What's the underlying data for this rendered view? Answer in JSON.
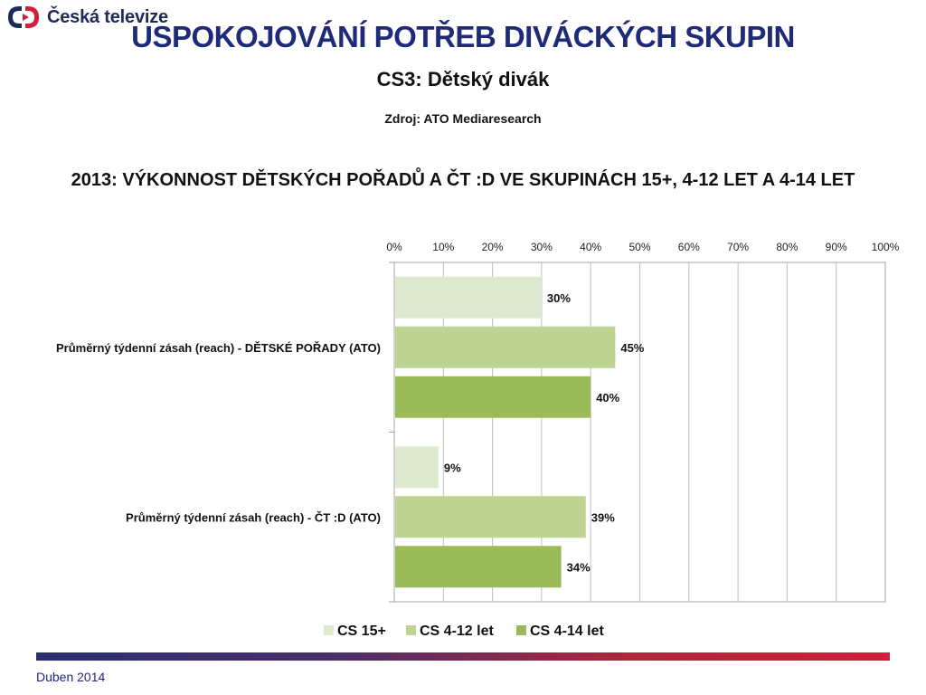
{
  "brand": {
    "name": "Česká televize",
    "mark_color": "#d0203a",
    "text_color": "#1e2a5a"
  },
  "header": {
    "title": "USPOKOJOVÁNÍ POTŘEB DIVÁCKÝCH SKUPIN",
    "subtitle": "CS3: Dětský divák",
    "source": "Zdroj: ATO Mediaresearch"
  },
  "footer": {
    "date": "Duben 2014"
  },
  "chart_data": {
    "type": "bar",
    "orientation": "horizontal",
    "title": "2013: VÝKONNOST DĚTSKÝCH POŘADŮ A ČT :D VE SKUPINÁCH 15+, 4-12 LET A 4-14 LET",
    "xlim": [
      0,
      100
    ],
    "x_ticks": [
      0,
      10,
      20,
      30,
      40,
      50,
      60,
      70,
      80,
      90,
      100
    ],
    "tick_suffix": "%",
    "axis_position": "top",
    "grid": true,
    "legend_position": "bottom",
    "categories": [
      "Průměrný týdenní zásah (reach) - DĚTSKÉ POŘADY (ATO)",
      "Průměrný týdenní zásah (reach) - ČT :D (ATO)"
    ],
    "series": [
      {
        "name": "CS 15+",
        "color": "#dfe9cf",
        "values": [
          30,
          9
        ]
      },
      {
        "name": "CS 4-12 let",
        "color": "#bdd492",
        "values": [
          45,
          39
        ]
      },
      {
        "name": "CS 4-14 let",
        "color": "#9bbb59",
        "values": [
          40,
          34
        ]
      }
    ],
    "value_labels": [
      [
        "30%",
        "9%"
      ],
      [
        "45%",
        "39%"
      ],
      [
        "40%",
        "34%"
      ]
    ]
  }
}
